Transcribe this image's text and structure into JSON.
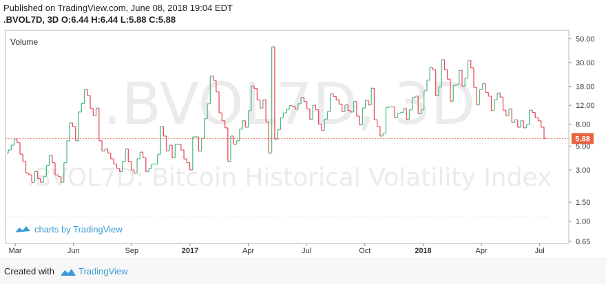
{
  "header": {
    "published": "Published on TradingView.com, June 08, 2018 19:04 EDT",
    "symbol": ".BVOL7D, 3D",
    "open_label": "O:",
    "open": "6.44",
    "high_label": "H:",
    "high": "6.44",
    "low_label": "L:",
    "low": "5.88",
    "close_label": "C:",
    "close": "5.88"
  },
  "footer": {
    "created_with": "Created with",
    "brand": "TradingView"
  },
  "colors": {
    "up": "#53b987",
    "down": "#eb4d5c",
    "current": "#e8623f",
    "watermark": "#e9e9e9"
  },
  "chart_data": {
    "type": "candlestick",
    "scale": "log",
    "title": "Volume",
    "watermark_symbol": ".BVOL7D, 3D",
    "watermark_name": ".BVOL7D: Bitcoin Historical Volatility Index",
    "branding": "charts by TradingView",
    "y_ticks": [
      "50.00",
      "30.00",
      "18.00",
      "12.00",
      "8.00",
      "5.00",
      "3.00",
      "1.50",
      "1.00",
      "0.65"
    ],
    "y_tick_values": [
      50,
      30,
      18,
      12,
      8,
      5,
      3,
      1.5,
      1,
      0.65
    ],
    "ylim": [
      0.62,
      60
    ],
    "x_ticks": [
      "Mar",
      "Jun",
      "Sep",
      "2017",
      "Apr",
      "Jul",
      "Oct",
      "2018",
      "Apr",
      "Jul"
    ],
    "x_ticks_bold": [
      false,
      false,
      false,
      true,
      false,
      false,
      false,
      true,
      false,
      false
    ],
    "x_range_months": [
      0,
      29
    ],
    "x_tick_months": [
      0.5,
      3.5,
      6.5,
      9.5,
      12.5,
      15.5,
      18.5,
      21.5,
      24.5,
      27.5
    ],
    "current_value": "5.88",
    "current": 5.88,
    "closes": [
      4.6,
      5.1,
      5.8,
      5.4,
      4.2,
      3.6,
      2.8,
      2.7,
      2.3,
      2.9,
      2.5,
      2.3,
      2.6,
      3.3,
      4.1,
      3.5,
      2.7,
      2.6,
      2.3,
      3.5,
      5.6,
      8.2,
      7.6,
      5.6,
      10.4,
      12.5,
      16.9,
      14.8,
      11.2,
      9.6,
      11.3,
      5.6,
      4.5,
      4.7,
      4.3,
      3.8,
      3.4,
      3.1,
      2.9,
      3.6,
      4.7,
      3.6,
      3.0,
      2.8,
      3.8,
      4.4,
      3.9,
      2.9,
      3.1,
      3.4,
      3.4,
      4.2,
      7.6,
      6.2,
      4.5,
      5.1,
      3.9,
      5.2,
      5.2,
      4.6,
      3.8,
      3.5,
      3.0,
      6.1,
      6.1,
      4.5,
      5.9,
      9.0,
      12.4,
      22.5,
      20.5,
      16.0,
      10.2,
      8.6,
      7.4,
      3.6,
      6.2,
      5.2,
      5.6,
      7.2,
      8.6,
      7.5,
      10.7,
      18.1,
      17.2,
      13.5,
      11.3,
      13.5,
      8.4,
      4.3,
      42.0,
      5.8,
      7.1,
      9.2,
      10.2,
      11.0,
      11.9,
      11.7,
      11.0,
      12.4,
      14.2,
      13.0,
      11.1,
      8.9,
      12.0,
      10.9,
      8.0,
      7.0,
      8.9,
      10.5,
      15.4,
      14.5,
      13.5,
      12.3,
      10.5,
      12.1,
      10.7,
      10.4,
      13.0,
      9.5,
      7.9,
      11.3,
      13.4,
      12.1,
      17.3,
      8.8,
      7.6,
      6.2,
      6.6,
      11.4,
      11.6,
      11.6,
      9.2,
      10.1,
      10.3,
      11.2,
      8.9,
      10.9,
      14.2,
      14.6,
      10.0,
      10.9,
      16.4,
      20.6,
      26.9,
      25.7,
      14.8,
      17.8,
      31.8,
      25.7,
      21.0,
      13.1,
      18.4,
      18.7,
      25.4,
      18.1,
      21.5,
      31.4,
      26.8,
      17.6,
      12.1,
      16.8,
      19.1,
      15.8,
      14.6,
      10.7,
      13.5,
      15.6,
      14.3,
      10.8,
      9.6,
      11.1,
      8.3,
      8.8,
      7.5,
      8.6,
      7.4,
      7.9,
      10.8,
      10.3,
      9.2,
      8.6,
      7.5,
      5.88
    ]
  }
}
